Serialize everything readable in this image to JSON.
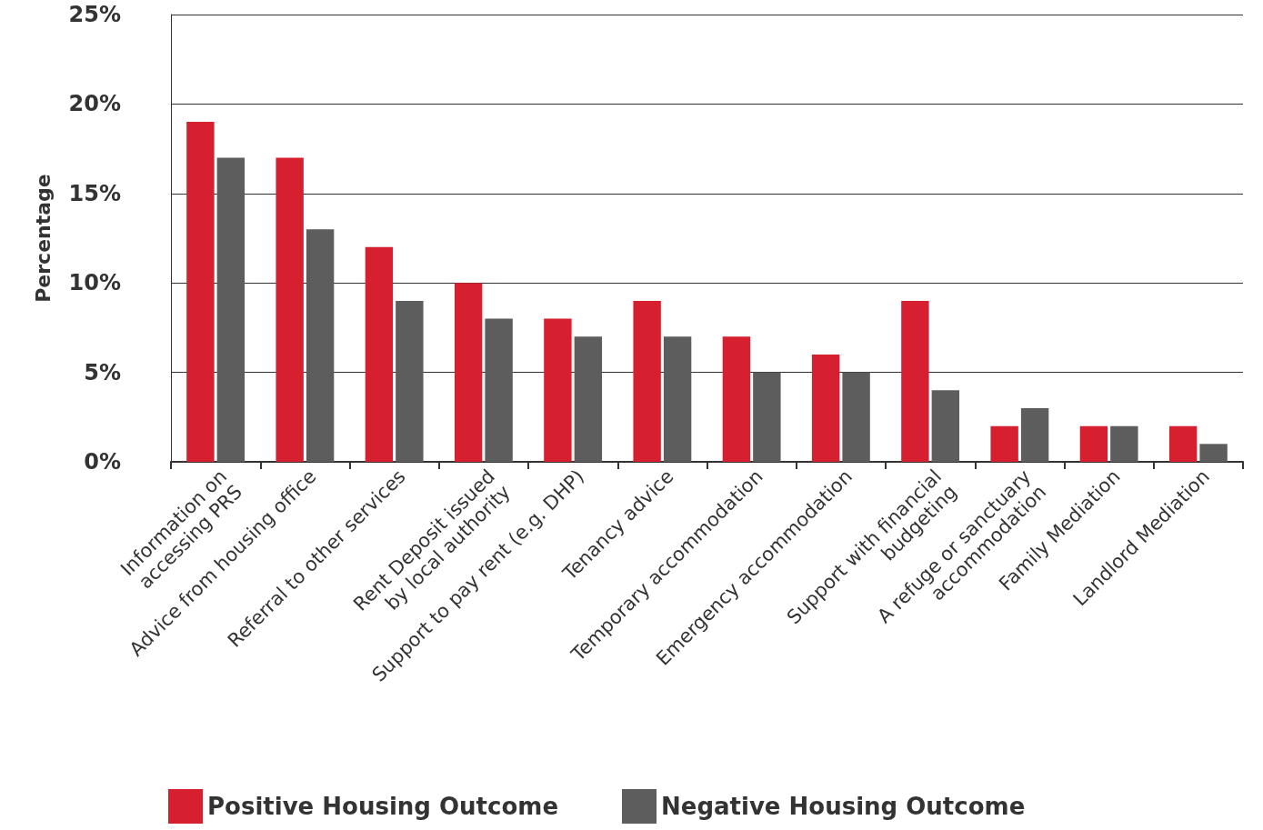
{
  "chart_data": {
    "type": "bar",
    "categories": [
      "Information on\naccessing PRS",
      "Advice from housing office",
      "Referral to other services",
      "Rent Deposit issued\nby local authority",
      "Support to pay rent (e.g. DHP)",
      "Tenancy advice",
      "Temporary accommodation",
      "Emergency accommodation",
      "Support with financial\nbudgeting",
      "A refuge or sanctuary\naccommodation",
      "Family Mediation",
      "Landlord Mediation"
    ],
    "series": [
      {
        "name": "Positive Housing Outcome",
        "color": "#d62030",
        "values": [
          19,
          17,
          12,
          10,
          8,
          9,
          7,
          6,
          9,
          2,
          2,
          2
        ]
      },
      {
        "name": "Negative Housing Outcome",
        "color": "#5c5d5c",
        "values": [
          17,
          13,
          9,
          8,
          7,
          7,
          5,
          5,
          4,
          3,
          2,
          1
        ]
      }
    ],
    "ylabel": "Percentage",
    "ylim": [
      0,
      25
    ],
    "yticks": [
      {
        "value": 0,
        "label": "0%"
      },
      {
        "value": 5,
        "label": "5%"
      },
      {
        "value": 10,
        "label": "10%"
      },
      {
        "value": 15,
        "label": "15%"
      },
      {
        "value": 20,
        "label": "20%"
      },
      {
        "value": 25,
        "label": "25%"
      }
    ],
    "grid": "y",
    "legend": "bottom"
  }
}
